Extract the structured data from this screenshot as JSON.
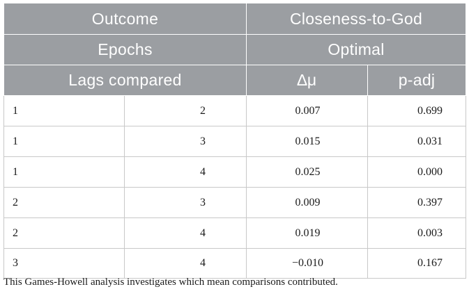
{
  "table": {
    "header": {
      "outcome_label": "Outcome",
      "outcome_value": "Closeness-to-God",
      "epochs_label": "Epochs",
      "epochs_value": "Optimal",
      "lags_label": "Lags compared",
      "delta_mu_label": "∆μ",
      "p_adj_label": "p-adj"
    },
    "rows": [
      {
        "lag_a": "1",
        "lag_b": "2",
        "delta_mu": "0.007",
        "p_adj": "0.699"
      },
      {
        "lag_a": "1",
        "lag_b": "3",
        "delta_mu": "0.015",
        "p_adj": "0.031"
      },
      {
        "lag_a": "1",
        "lag_b": "4",
        "delta_mu": "0.025",
        "p_adj": "0.000"
      },
      {
        "lag_a": "2",
        "lag_b": "3",
        "delta_mu": "0.009",
        "p_adj": "0.397"
      },
      {
        "lag_a": "2",
        "lag_b": "4",
        "delta_mu": "0.019",
        "p_adj": "0.003"
      },
      {
        "lag_a": "3",
        "lag_b": "4",
        "delta_mu": "−0.010",
        "p_adj": "0.167"
      }
    ]
  },
  "footnote": "This Games-Howell analysis investigates which mean comparisons contributed.",
  "colors": {
    "header_background": "#9b9ea2",
    "header_text": "#ffffff",
    "grid_lines": "#c8c8c8"
  }
}
